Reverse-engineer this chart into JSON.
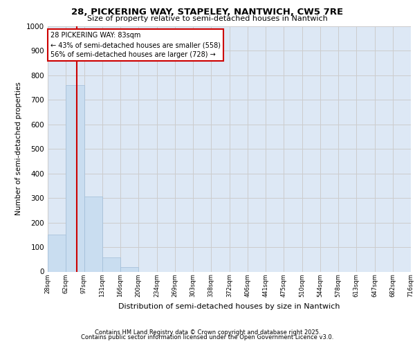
{
  "title_line1": "28, PICKERING WAY, STAPELEY, NANTWICH, CW5 7RE",
  "title_line2": "Size of property relative to semi-detached houses in Nantwich",
  "xlabel": "Distribution of semi-detached houses by size in Nantwich",
  "ylabel": "Number of semi-detached properties",
  "bins": [
    "28sqm",
    "62sqm",
    "97sqm",
    "131sqm",
    "166sqm",
    "200sqm",
    "234sqm",
    "269sqm",
    "303sqm",
    "338sqm",
    "372sqm",
    "406sqm",
    "441sqm",
    "475sqm",
    "510sqm",
    "544sqm",
    "578sqm",
    "613sqm",
    "647sqm",
    "682sqm",
    "716sqm"
  ],
  "bar_heights": [
    152,
    758,
    305,
    58,
    18,
    0,
    0,
    0,
    0,
    0,
    0,
    0,
    0,
    0,
    0,
    0,
    0,
    0,
    0,
    0
  ],
  "bar_color": "#c9ddf0",
  "bar_edge_color": "#a0bcd8",
  "annotation_text_line1": "28 PICKERING WAY: 83sqm",
  "annotation_text_line2": "← 43% of semi-detached houses are smaller (558)",
  "annotation_text_line3": "56% of semi-detached houses are larger (728) →",
  "annotation_box_color": "#ffffff",
  "annotation_box_edge_color": "#cc0000",
  "red_line_color": "#cc0000",
  "ylim": [
    0,
    1000
  ],
  "yticks": [
    0,
    100,
    200,
    300,
    400,
    500,
    600,
    700,
    800,
    900,
    1000
  ],
  "grid_color": "#cccccc",
  "bg_color": "#dde8f5",
  "footer_line1": "Contains HM Land Registry data © Crown copyright and database right 2025.",
  "footer_line2": "Contains public sector information licensed under the Open Government Licence v3.0."
}
